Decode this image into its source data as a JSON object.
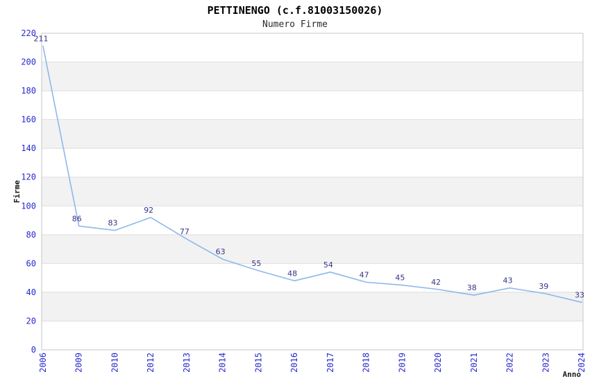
{
  "header": {
    "title": "PETTINENGO (c.f.81003150026)",
    "subtitle": "Numero Firme"
  },
  "chart_data": {
    "type": "line",
    "title": "PETTINENGO (c.f.81003150026)",
    "subtitle": "Numero Firme",
    "xlabel": "Anno",
    "ylabel": "Firme",
    "categories": [
      "2006",
      "2009",
      "2010",
      "2012",
      "2013",
      "2014",
      "2015",
      "2016",
      "2017",
      "2018",
      "2019",
      "2020",
      "2021",
      "2022",
      "2023",
      "2024"
    ],
    "values": [
      211,
      86,
      83,
      92,
      77,
      63,
      55,
      48,
      54,
      47,
      45,
      42,
      38,
      43,
      39,
      33
    ],
    "ylim": [
      0,
      220
    ],
    "ytick_step": 20,
    "grid": true,
    "alternating_bands": true,
    "legend_position": "none",
    "colors": {
      "line": "#8db8ea",
      "tick_label": "#2828d0",
      "data_label": "#333388",
      "band": "#f2f2f2",
      "gridline": "#dedede",
      "plot_border": "#c6c6c6",
      "axis_title": "#1a1a1a",
      "background": "#ffffff"
    }
  }
}
